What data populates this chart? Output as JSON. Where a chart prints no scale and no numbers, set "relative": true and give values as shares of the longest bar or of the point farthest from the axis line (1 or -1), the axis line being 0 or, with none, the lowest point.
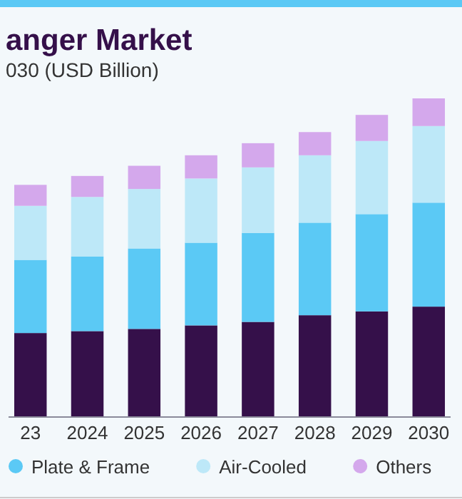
{
  "chart_data": {
    "type": "bar",
    "title": "anger Market",
    "subtitle": "030 (USD Billion)",
    "stacked": true,
    "relative": true,
    "legend": "bottom",
    "categories": [
      "23",
      "2024",
      "2025",
      "2026",
      "2027",
      "2028",
      "2029",
      "2030"
    ],
    "series": [
      {
        "color": "#35104a",
        "values": [
          0.262,
          0.268,
          0.275,
          0.286,
          0.297,
          0.318,
          0.33,
          0.345
        ]
      },
      {
        "name": "Plate & Frame",
        "color": "#5bc9f5",
        "values": [
          0.23,
          0.235,
          0.253,
          0.26,
          0.28,
          0.291,
          0.306,
          0.327
        ]
      },
      {
        "name": "Air-Cooled",
        "color": "#bde8f8",
        "values": [
          0.17,
          0.187,
          0.187,
          0.202,
          0.206,
          0.212,
          0.23,
          0.241
        ]
      },
      {
        "name": "Others",
        "color": "#d4a8ec",
        "values": [
          0.066,
          0.066,
          0.073,
          0.073,
          0.076,
          0.073,
          0.082,
          0.087
        ]
      }
    ]
  }
}
